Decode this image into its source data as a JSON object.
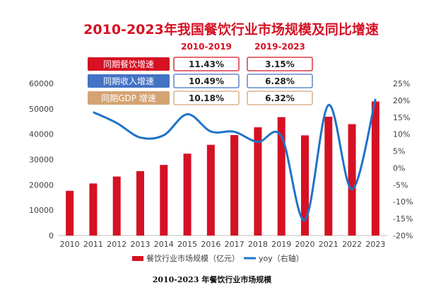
{
  "chart_data": {
    "type": "bar+line",
    "title": "2010-2023年我国餐饮行业市场规模及同比增速",
    "categories": [
      "2010",
      "2011",
      "2012",
      "2013",
      "2014",
      "2015",
      "2016",
      "2017",
      "2018",
      "2019",
      "2020",
      "2021",
      "2022",
      "2023"
    ],
    "series": [
      {
        "name": "餐饮行业市场规模（亿元）",
        "type": "bar",
        "axis": "left",
        "values": [
          17636,
          20543,
          23283,
          25392,
          27860,
          32310,
          35799,
          39644,
          42716,
          46721,
          39527,
          46895,
          43941,
          52890
        ]
      },
      {
        "name": "yoy（右轴）",
        "type": "line",
        "axis": "right",
        "values": [
          null,
          16.5,
          13.3,
          9.0,
          9.7,
          15.9,
          10.8,
          10.7,
          7.7,
          9.4,
          -15.4,
          18.6,
          -6.3,
          20.4
        ]
      }
    ],
    "y_left": {
      "ylim": [
        0,
        60000
      ],
      "ticks": [
        "0",
        "10000",
        "20000",
        "30000",
        "40000",
        "50000",
        "60000"
      ]
    },
    "y_right": {
      "ylim": [
        -20,
        25
      ],
      "ticks": [
        "-20%",
        "-15%",
        "-10%",
        "-5%",
        "0%",
        "5%",
        "10%",
        "15%",
        "20%",
        "25%"
      ]
    },
    "grid": false,
    "legend_position": "bottom",
    "colors": {
      "bar": "#d51123",
      "line": "#1f73c8",
      "title": "#d51123"
    },
    "comparison_table": {
      "headers": [
        "2010-2019",
        "2019-2023"
      ],
      "rows": [
        {
          "label": "同期餐饮增速",
          "values": [
            "11.43%",
            "3.15%"
          ],
          "color": "#d51123"
        },
        {
          "label": "同期收入增速",
          "values": [
            "10.49%",
            "6.28%"
          ],
          "color": "#4472c4"
        },
        {
          "label": "同期GDP 增速",
          "values": [
            "10.18%",
            "6.32%"
          ],
          "color": "#d4a373"
        }
      ]
    }
  },
  "caption": "2010-2023 年餐饮行业市场规模"
}
